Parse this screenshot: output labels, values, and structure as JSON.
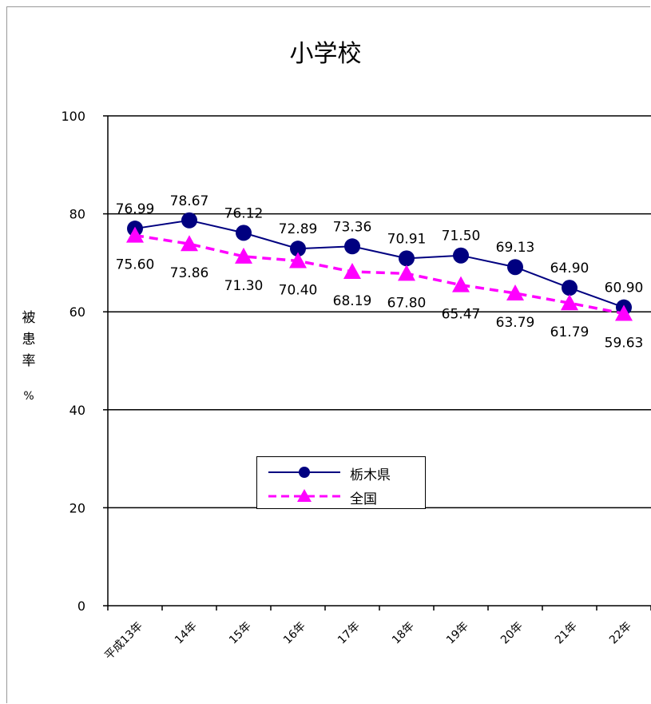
{
  "chart_data": {
    "type": "line",
    "title": "小学校",
    "ylabel": "被患率",
    "yunit": "%",
    "xlabel": "",
    "categories": [
      "平成13年",
      "14年",
      "15年",
      "16年",
      "17年",
      "18年",
      "19年",
      "20年",
      "21年",
      "22年"
    ],
    "ylim": [
      0,
      100
    ],
    "yticks": [
      0,
      20,
      40,
      60,
      80,
      100
    ],
    "series": [
      {
        "name": "栃木県",
        "color": "#000080",
        "marker": "circle",
        "dash": "solid",
        "values": [
          76.99,
          78.67,
          76.12,
          72.89,
          73.36,
          70.91,
          71.5,
          69.13,
          64.9,
          60.9
        ],
        "labels": [
          "76.99",
          "78.67",
          "76.12",
          "72.89",
          "73.36",
          "70.91",
          "71.50",
          "69.13",
          "64.90",
          "60.90"
        ]
      },
      {
        "name": "全国",
        "color": "#ff00ff",
        "marker": "triangle",
        "dash": "dashed",
        "values": [
          75.6,
          73.86,
          71.3,
          70.4,
          68.19,
          67.8,
          65.47,
          63.79,
          61.79,
          59.63
        ],
        "labels": [
          "75.60",
          "73.86",
          "71.30",
          "70.40",
          "68.19",
          "67.80",
          "65.47",
          "63.79",
          "61.79",
          "59.63"
        ]
      }
    ],
    "grid": true,
    "legend_position": "center-left"
  }
}
